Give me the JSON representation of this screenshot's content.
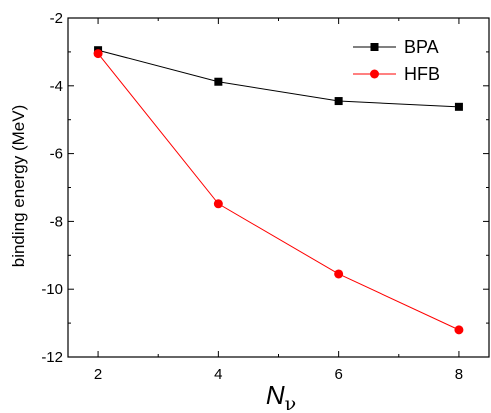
{
  "chart_data": {
    "type": "line",
    "x": [
      2,
      4,
      6,
      8
    ],
    "series": [
      {
        "name": "BPA",
        "color": "#000000",
        "marker": "square",
        "values": [
          -2.95,
          -3.88,
          -4.45,
          -4.62
        ]
      },
      {
        "name": "HFB",
        "color": "#ff0000",
        "marker": "circle",
        "values": [
          -3.05,
          -7.48,
          -9.55,
          -11.2
        ]
      }
    ],
    "xlim": [
      1.5,
      8.5
    ],
    "ylim": [
      -12,
      -2
    ],
    "xticks": [
      2,
      4,
      6,
      8
    ],
    "yticks": [
      -12,
      -10,
      -8,
      -6,
      -4,
      -2
    ],
    "xtick_labels": [
      "2",
      "4",
      "6",
      "8"
    ],
    "ytick_labels": [
      "-12",
      "-10",
      "-8",
      "-6",
      "-4",
      "-2"
    ],
    "ylabel": "binding energy (MeV)",
    "xlabel": {
      "main": "N",
      "sub": "ν"
    },
    "legend_position": "top-right",
    "grid": false
  }
}
